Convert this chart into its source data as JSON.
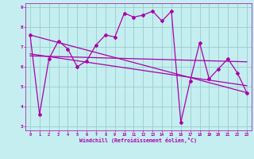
{
  "title": "",
  "xlabel": "Windchill (Refroidissement éolien,°C)",
  "background_color": "#c5eef0",
  "line_color": "#aa00aa",
  "grid_color": "#99cccc",
  "xlim": [
    -0.5,
    23.5
  ],
  "ylim": [
    2.8,
    9.2
  ],
  "yticks": [
    3,
    4,
    5,
    6,
    7,
    8,
    9
  ],
  "xticks": [
    0,
    1,
    2,
    3,
    4,
    5,
    6,
    7,
    8,
    9,
    10,
    11,
    12,
    13,
    14,
    15,
    16,
    17,
    18,
    19,
    20,
    21,
    22,
    23
  ],
  "series1_x": [
    0,
    1,
    2,
    3,
    4,
    5,
    6,
    7,
    8,
    9,
    10,
    11,
    12,
    13,
    14,
    15,
    16,
    17,
    18,
    19,
    20,
    21,
    22,
    23
  ],
  "series1_y": [
    7.6,
    3.6,
    6.4,
    7.3,
    6.9,
    6.0,
    6.3,
    7.1,
    7.6,
    7.5,
    8.7,
    8.5,
    8.6,
    8.8,
    8.3,
    8.8,
    3.2,
    5.3,
    7.2,
    5.4,
    5.9,
    6.4,
    5.7,
    4.7
  ],
  "series2_x": [
    0,
    23
  ],
  "series2_y": [
    6.65,
    5.05
  ],
  "series3_x": [
    0,
    23
  ],
  "series3_y": [
    6.55,
    6.25
  ],
  "series4_x": [
    0,
    23
  ],
  "series4_y": [
    7.6,
    4.7
  ]
}
